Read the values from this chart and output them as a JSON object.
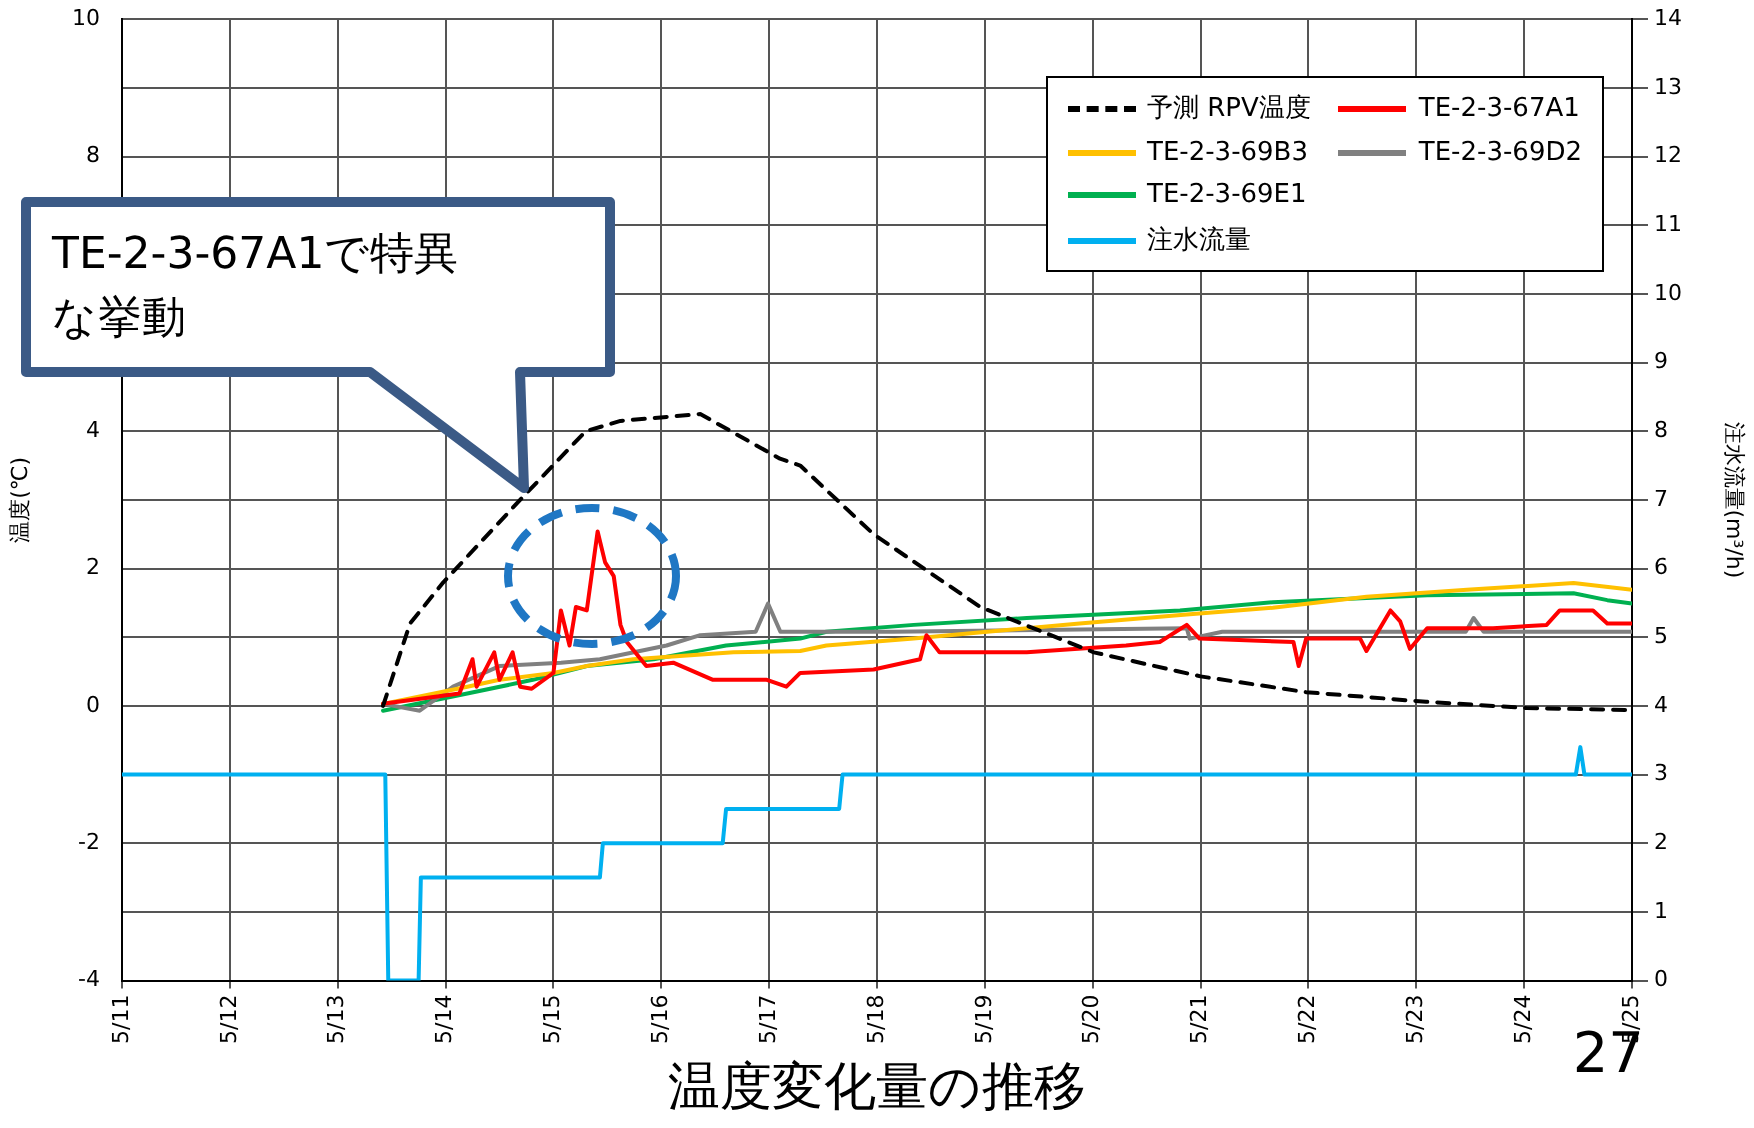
{
  "chart_data": {
    "type": "line",
    "title": "温度変化量の推移",
    "ylabel": "温度(℃)",
    "y2label": "注水流量(m³/h)",
    "annotations": [
      "TE-2-3-67A1で特異な挙動",
      "27"
    ],
    "xlim": [
      "--05-11",
      "--05-25"
    ],
    "xticks": [
      {
        "value": "--05-11",
        "label": "5/11"
      },
      {
        "value": "--05-12",
        "label": "5/12"
      },
      {
        "value": "--05-13",
        "label": "5/13"
      },
      {
        "value": "--05-14",
        "label": "5/14"
      },
      {
        "value": "--05-15",
        "label": "5/15"
      },
      {
        "value": "--05-16",
        "label": "5/16"
      },
      {
        "value": "--05-17",
        "label": "5/17"
      },
      {
        "value": "--05-18",
        "label": "5/18"
      },
      {
        "value": "--05-19",
        "label": "5/19"
      },
      {
        "value": "--05-20",
        "label": "5/20"
      },
      {
        "value": "--05-21",
        "label": "5/21"
      },
      {
        "value": "--05-22",
        "label": "5/22"
      },
      {
        "value": "--05-23",
        "label": "5/23"
      },
      {
        "value": "--05-24",
        "label": "5/24"
      },
      {
        "value": "--05-25",
        "label": "5/25"
      }
    ],
    "ylim": [
      -4,
      10
    ],
    "yticks": [
      -4,
      -2,
      0,
      2,
      4,
      8,
      10
    ],
    "y2lim": [
      0,
      14
    ],
    "y2ticks": [
      0,
      1,
      2,
      3,
      4,
      5,
      6,
      7,
      8,
      9,
      10,
      11,
      12,
      13,
      14
    ],
    "grid": true,
    "legend": "top right",
    "marker": "none",
    "series": [
      {
        "name": "予測 RPV温度",
        "color": "#000000",
        "line_style": "dashed",
        "x": [
          "--05-13T10:05",
          "--05-13T16:05",
          "--05-13T23:30",
          "--05-14T16:35",
          "--05-15T07:10",
          "--05-15T14:55",
          "--05-16T08:40",
          "--05-17T02:25",
          "--05-17T06:55",
          "--05-17T23:15",
          "--05-18T23:00",
          "--05-20T00:15",
          "--05-21T00:00",
          "--05-21T23:30",
          "--05-23T02:10",
          "--05-24T00:30",
          "--05-24T22:35"
        ],
        "values": [
          0.0,
          1.2,
          1.8,
          3.0,
          4.0,
          4.15,
          4.25,
          3.6,
          3.5,
          2.5,
          1.44,
          0.78,
          0.43,
          0.2,
          0.06,
          -0.03,
          -0.06
        ]
      },
      {
        "name": "TE-2-3-67A1",
        "color": "#ff0000",
        "x": [
          "--05-13T10:05",
          "--05-14T03:05",
          "--05-14T06:00",
          "--05-14T06:55",
          "--05-14T10:50",
          "--05-14T12:00",
          "--05-14T14:55",
          "--05-14T16:35",
          "--05-14T19:10",
          "--05-15T00:00",
          "--05-15T01:40",
          "--05-15T03:35",
          "--05-15T05:00",
          "--05-15T07:25",
          "--05-15T09:50",
          "--05-15T11:30",
          "--05-15T13:25",
          "--05-15T14:55",
          "--05-15T16:20",
          "--05-15T20:40",
          "--05-16T02:40",
          "--05-16T11:30",
          "--05-16T23:30",
          "--05-17T03:50",
          "--05-17T06:55",
          "--05-17T23:15",
          "--05-18T09:35",
          "--05-18T11:00",
          "--05-18T13:55",
          "--05-19T09:20",
          "--05-20T07:25",
          "--05-20T14:55",
          "--05-20T20:55",
          "--05-20T23:45",
          "--05-21T20:40",
          "--05-21T21:50",
          "--05-21T23:30",
          "--05-22T11:30",
          "--05-22T12:55",
          "--05-22T18:15",
          "--05-22T20:25",
          "--05-22T22:35",
          "--05-23T02:25",
          "--05-23T17:05",
          "--05-24T05:00",
          "--05-24T07:55",
          "--05-24T15:20",
          "--05-24T18:30",
          "--05-25T00:00"
        ],
        "values": [
          0.03,
          0.18,
          0.68,
          0.28,
          0.78,
          0.38,
          0.78,
          0.28,
          0.25,
          0.48,
          1.39,
          0.88,
          1.44,
          1.39,
          2.54,
          2.09,
          1.89,
          1.18,
          0.93,
          0.58,
          0.63,
          0.38,
          0.38,
          0.28,
          0.48,
          0.53,
          0.68,
          1.03,
          0.78,
          0.78,
          0.88,
          0.93,
          1.18,
          0.98,
          0.93,
          0.58,
          0.98,
          0.98,
          0.8,
          1.39,
          1.23,
          0.83,
          1.13,
          1.13,
          1.18,
          1.39,
          1.39,
          1.2,
          1.2
        ]
      },
      {
        "name": "TE-2-3-69B3",
        "color": "#ffc000",
        "x": [
          "--05-13T10:05",
          "--05-14T04:50",
          "--05-14T12:00",
          "--05-15T00:00",
          "--05-15T07:25",
          "--05-15T17:45",
          "--05-16T16:05",
          "--05-17T06:55",
          "--05-17T12:45",
          "--05-18T08:10",
          "--05-19T00:30",
          "--05-19T21:05",
          "--05-20T20:55",
          "--05-21T16:05",
          "--05-22T12:55",
          "--05-23T11:15",
          "--05-24T11:00",
          "--05-25T00:00"
        ],
        "values": [
          0.03,
          0.28,
          0.38,
          0.48,
          0.58,
          0.68,
          0.78,
          0.8,
          0.88,
          0.98,
          1.08,
          1.2,
          1.33,
          1.43,
          1.59,
          1.69,
          1.79,
          1.69
        ]
      },
      {
        "name": "TE-2-3-69D2",
        "color": "#808080",
        "x": [
          "--05-13T10:05",
          "--05-13T18:15",
          "--05-14T01:40",
          "--05-14T12:00",
          "--05-15T01:40",
          "--05-15T10:20",
          "--05-16T01:10",
          "--05-16T08:40",
          "--05-16T21:00",
          "--05-16T23:45",
          "--05-17T02:30",
          "--05-18T03:35",
          "--05-20T20:55",
          "--05-20T21:35",
          "--05-21T04:50",
          "--05-23T11:00",
          "--05-23T12:45",
          "--05-23T15:00",
          "--05-25T00:00"
        ],
        "values": [
          0.03,
          -0.07,
          0.28,
          0.58,
          0.63,
          0.68,
          0.88,
          1.03,
          1.08,
          1.49,
          1.08,
          1.08,
          1.13,
          0.98,
          1.08,
          1.08,
          1.28,
          1.08,
          1.08
        ]
      },
      {
        "name": "TE-2-3-69E1",
        "color": "#00b050",
        "x": [
          "--05-13T10:05",
          "--05-14T04:50",
          "--05-14T19:25",
          "--05-15T07:25",
          "--05-15T22:20",
          "--05-16T14:25",
          "--05-17T06:55",
          "--05-17T12:45",
          "--05-18T08:10",
          "--05-19T09:20",
          "--05-20T19:25",
          "--05-21T16:05",
          "--05-23T02:25",
          "--05-24T11:00",
          "--05-24T18:30",
          "--05-25T00:00"
        ],
        "values": [
          -0.07,
          0.18,
          0.38,
          0.58,
          0.68,
          0.88,
          0.98,
          1.08,
          1.18,
          1.28,
          1.39,
          1.51,
          1.61,
          1.64,
          1.54,
          1.49
        ]
      },
      {
        "name": "注水流量",
        "color": "#00b0f0",
        "axis": "y2",
        "x": [
          "--05-11T00:00",
          "--05-13T10:35",
          "--05-13T11:15",
          "--05-13T18:00",
          "--05-13T18:30",
          "--05-15T10:20",
          "--05-15T11:00",
          "--05-16T13:40",
          "--05-16T14:25",
          "--05-17T15:35",
          "--05-17T16:20",
          "--05-24T11:30",
          "--05-24T12:30",
          "--05-24T13:25",
          "--05-25T00:00"
        ],
        "values": [
          3.0,
          3.0,
          0,
          0,
          1.5,
          1.5,
          2.0,
          2.0,
          2.5,
          2.5,
          3.0,
          3.0,
          3.4,
          3.0,
          3.0
        ]
      }
    ]
  }
}
